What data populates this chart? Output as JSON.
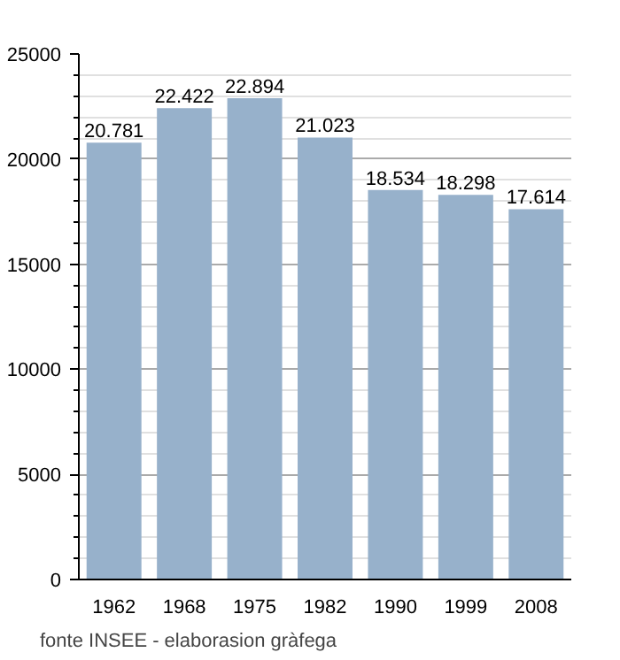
{
  "chart_data": {
    "type": "bar",
    "categories": [
      "1962",
      "1968",
      "1975",
      "1982",
      "1990",
      "1999",
      "2008"
    ],
    "values": [
      20781,
      22422,
      22894,
      21023,
      18534,
      18298,
      17614
    ],
    "value_labels": [
      "20.781",
      "22.422",
      "22.894",
      "21.023",
      "18.534",
      "18.298",
      "17.614"
    ],
    "color": "#97b1cb",
    "ylim": [
      0,
      25000
    ],
    "yticks": [
      0,
      5000,
      10000,
      15000,
      20000,
      25000
    ],
    "grid": "y",
    "annotations": [
      "fonte INSEE - elaborasion gràfega"
    ]
  }
}
